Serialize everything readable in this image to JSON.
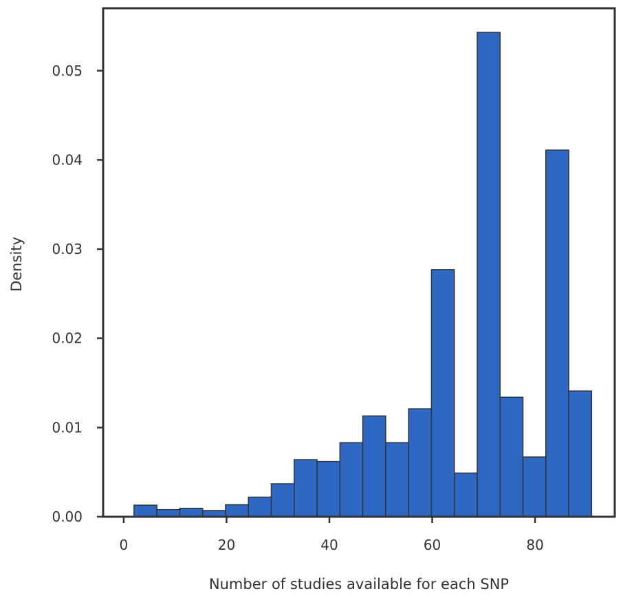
{
  "chart_data": {
    "type": "bar",
    "title": "",
    "xlabel": "Number of studies available for each SNP",
    "ylabel": "Density",
    "xlim": [
      -4,
      95.5
    ],
    "ylim": [
      0,
      0.057
    ],
    "xticks": [
      0,
      20,
      40,
      60,
      80
    ],
    "xtick_labels": [
      "0",
      "20",
      "40",
      "60",
      "80"
    ],
    "yticks": [
      0.0,
      0.01,
      0.02,
      0.03,
      0.04,
      0.05
    ],
    "ytick_labels": [
      "0.00",
      "0.01",
      "0.02",
      "0.03",
      "0.04",
      "0.05"
    ],
    "bin_edges": [
      2.0,
      6.45,
      10.9,
      15.35,
      19.8,
      24.25,
      28.7,
      33.15,
      37.6,
      42.05,
      46.5,
      50.95,
      55.4,
      59.85,
      64.3,
      68.75,
      73.2,
      77.65,
      82.1,
      86.55,
      91.0
    ],
    "values": [
      0.0013,
      0.0008,
      0.00095,
      0.0007,
      0.00135,
      0.0022,
      0.0037,
      0.0064,
      0.0062,
      0.0083,
      0.0113,
      0.0083,
      0.0121,
      0.0277,
      0.0049,
      0.0543,
      0.0134,
      0.0067,
      0.0411,
      0.0141
    ],
    "bar_color": "#2e68c5",
    "edge_color": "#333333",
    "grid": false,
    "legend": "none"
  }
}
